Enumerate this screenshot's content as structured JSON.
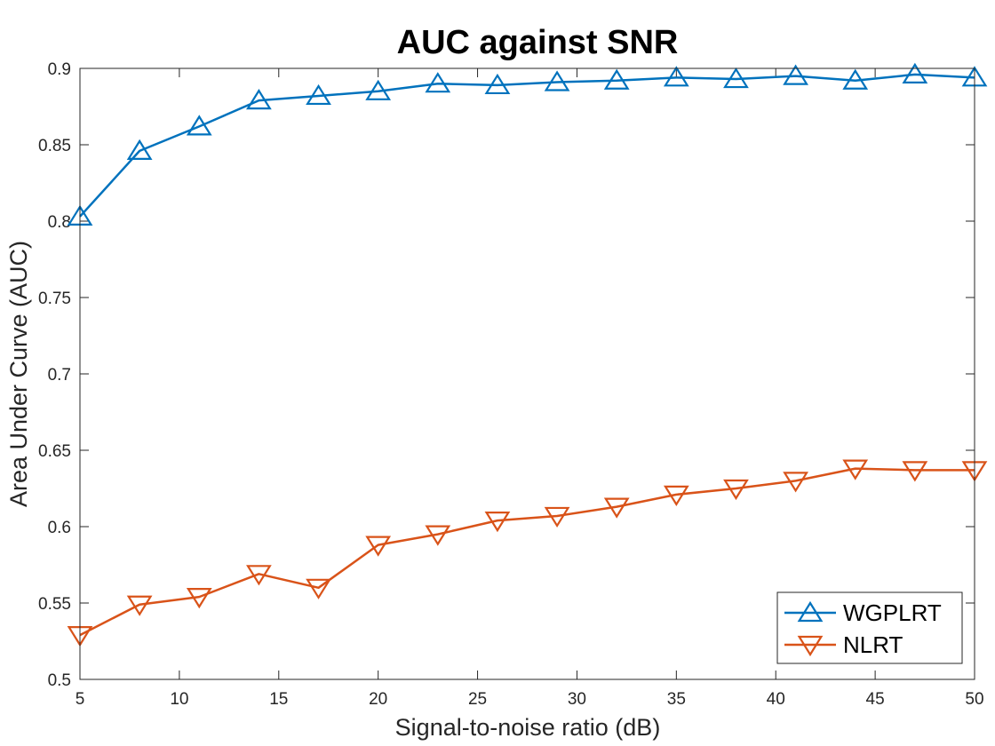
{
  "chart_data": {
    "type": "line",
    "title": "AUC against SNR",
    "xlabel": "Signal-to-noise ratio (dB)",
    "ylabel": "Area Under Curve (AUC)",
    "xlim": [
      5,
      50
    ],
    "ylim": [
      0.5,
      0.9
    ],
    "xticks": [
      5,
      10,
      15,
      20,
      25,
      30,
      35,
      40,
      45,
      50
    ],
    "yticks": [
      0.5,
      0.55,
      0.6,
      0.65,
      0.7,
      0.75,
      0.8,
      0.85,
      0.9
    ],
    "x": [
      5,
      8,
      11,
      14,
      17,
      20,
      23,
      26,
      29,
      32,
      35,
      38,
      41,
      44,
      47,
      50
    ],
    "grid": false,
    "legend": "bottom-right",
    "series": [
      {
        "name": "WGPLRT",
        "color": "#0072BD",
        "marker": "triangle-up",
        "values": [
          0.803,
          0.846,
          0.862,
          0.879,
          0.882,
          0.885,
          0.89,
          0.889,
          0.891,
          0.892,
          0.894,
          0.893,
          0.895,
          0.892,
          0.896,
          0.894
        ]
      },
      {
        "name": "NLRT",
        "color": "#D95319",
        "marker": "triangle-down",
        "values": [
          0.529,
          0.549,
          0.554,
          0.569,
          0.56,
          0.588,
          0.595,
          0.604,
          0.607,
          0.613,
          0.621,
          0.625,
          0.63,
          0.638,
          0.637,
          0.637
        ]
      }
    ]
  }
}
